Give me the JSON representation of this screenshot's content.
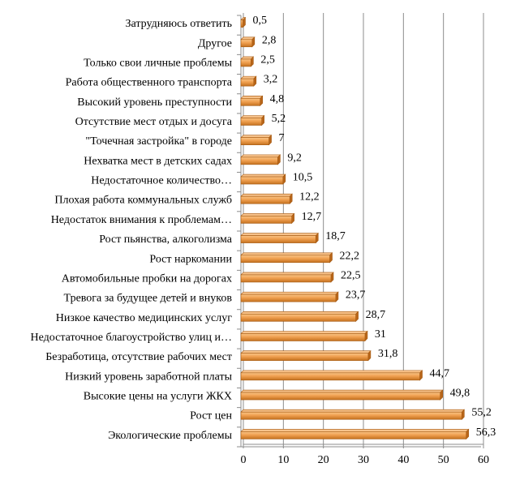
{
  "chart_data": {
    "type": "bar",
    "orientation": "horizontal",
    "title": "",
    "xlabel": "",
    "ylabel": "",
    "xlim": [
      0,
      60
    ],
    "x_ticks": [
      0,
      10,
      20,
      30,
      40,
      50,
      60
    ],
    "grid": "vertical",
    "legend": "none",
    "bar_color": "#F0A050",
    "bar_edge_color": "#A65A12",
    "categories": [
      "Экологические проблемы",
      "Рост цен",
      "Высокие цены на услуги ЖКХ",
      "Низкий уровень заработной платы",
      "Безработица, отсутствие рабочих мест",
      "Недостаточное благоустройство улиц и…",
      "Низкое качество медицинских услуг",
      "Тревога за будущее детей и внуков",
      "Автомобильные пробки на дорогах",
      "Рост наркомании",
      "Рост пьянства, алкоголизма",
      "Недостаток внимания к проблемам…",
      "Плохая работа коммунальных служб",
      "Недостаточное количество…",
      "Нехватка мест в детских садах",
      "\"Точечная застройка\" в городе",
      "Отсутствие мест отдых и досуга",
      "Высокий уровень преступности",
      "Работа общественного транспорта",
      "Только свои личные проблемы",
      "Другое",
      "Затрудняюсь ответить"
    ],
    "values": [
      56.3,
      55.2,
      49.8,
      44.7,
      31.8,
      31,
      28.7,
      23.7,
      22.5,
      22.2,
      18.7,
      12.7,
      12.2,
      10.5,
      9.2,
      7,
      5.2,
      4.8,
      3.2,
      2.5,
      2.8,
      0.5
    ],
    "data_labels": [
      "56,3",
      "55,2",
      "49,8",
      "44,7",
      "31,8",
      "31",
      "28,7",
      "23,7",
      "22,5",
      "22,2",
      "18,7",
      "12,7",
      "12,2",
      "10,5",
      "9,2",
      "7",
      "5,2",
      "4,8",
      "3,2",
      "2,5",
      "2,8",
      "0,5"
    ]
  }
}
